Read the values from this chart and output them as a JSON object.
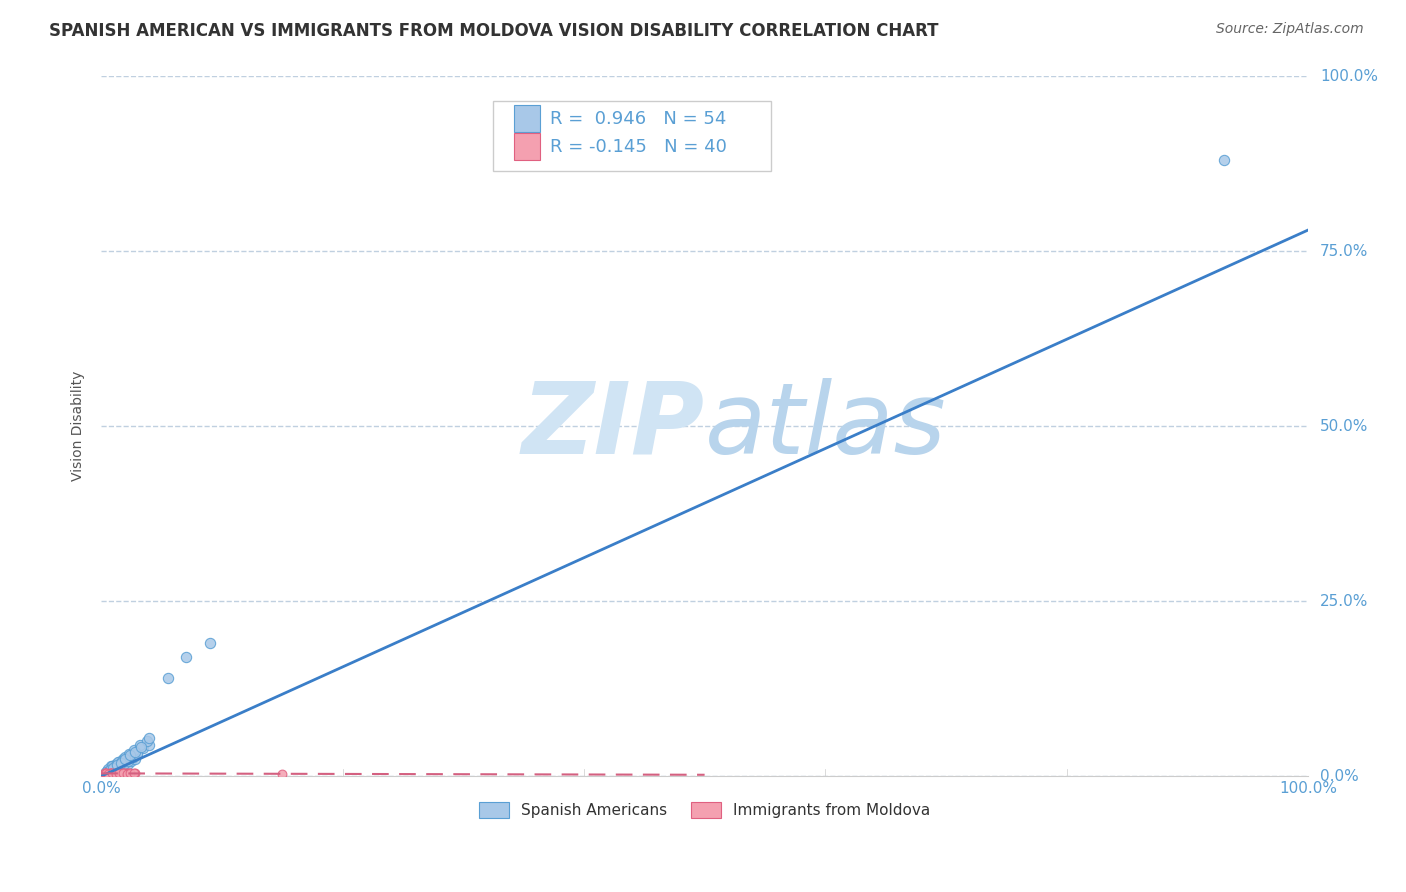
{
  "title": "SPANISH AMERICAN VS IMMIGRANTS FROM MOLDOVA VISION DISABILITY CORRELATION CHART",
  "source": "Source: ZipAtlas.com",
  "ylabel": "Vision Disability",
  "xlim": [
    0,
    1.0
  ],
  "ylim": [
    0,
    1.0
  ],
  "ytick_vals": [
    0.0,
    0.25,
    0.5,
    0.75,
    1.0
  ],
  "ytick_labels": [
    "0.0%",
    "25.0%",
    "50.0%",
    "75.0%",
    "100.0%"
  ],
  "legend_r1": "R =  0.946",
  "legend_n1": "N = 54",
  "legend_r2": "R = -0.145",
  "legend_n2": "N = 40",
  "blue_color": "#a8c8e8",
  "blue_edge_color": "#5a9fd4",
  "pink_color": "#f4a0b0",
  "pink_edge_color": "#e06080",
  "blue_line_color": "#3a7ec8",
  "pink_line_color": "#d46080",
  "background_color": "#ffffff",
  "grid_color": "#c0d0e0",
  "watermark_color": "#d0e4f4",
  "title_color": "#333333",
  "source_color": "#666666",
  "tick_color": "#5a9fd4",
  "title_fontsize": 12,
  "source_fontsize": 10,
  "axis_label_fontsize": 10,
  "tick_fontsize": 11,
  "legend_fontsize": 13,
  "blue_scatter_x": [
    0.005,
    0.008,
    0.01,
    0.012,
    0.015,
    0.018,
    0.02,
    0.022,
    0.025,
    0.028,
    0.008,
    0.01,
    0.012,
    0.015,
    0.018,
    0.02,
    0.025,
    0.03,
    0.035,
    0.04,
    0.005,
    0.007,
    0.009,
    0.011,
    0.013,
    0.016,
    0.019,
    0.022,
    0.026,
    0.03,
    0.006,
    0.009,
    0.012,
    0.014,
    0.017,
    0.02,
    0.023,
    0.027,
    0.032,
    0.038,
    0.004,
    0.007,
    0.01,
    0.013,
    0.016,
    0.02,
    0.024,
    0.028,
    0.033,
    0.04,
    0.055,
    0.07,
    0.09,
    0.93
  ],
  "blue_scatter_y": [
    0.005,
    0.01,
    0.008,
    0.012,
    0.01,
    0.015,
    0.02,
    0.018,
    0.022,
    0.025,
    0.015,
    0.012,
    0.018,
    0.02,
    0.025,
    0.022,
    0.03,
    0.035,
    0.04,
    0.045,
    0.008,
    0.006,
    0.012,
    0.01,
    0.015,
    0.013,
    0.018,
    0.022,
    0.028,
    0.032,
    0.01,
    0.014,
    0.016,
    0.02,
    0.022,
    0.028,
    0.032,
    0.038,
    0.045,
    0.05,
    0.006,
    0.009,
    0.011,
    0.016,
    0.019,
    0.025,
    0.03,
    0.035,
    0.042,
    0.055,
    0.14,
    0.17,
    0.19,
    0.88
  ],
  "pink_scatter_x": [
    0.002,
    0.004,
    0.006,
    0.008,
    0.01,
    0.012,
    0.015,
    0.018,
    0.02,
    0.022,
    0.003,
    0.005,
    0.007,
    0.009,
    0.011,
    0.014,
    0.016,
    0.019,
    0.021,
    0.024,
    0.003,
    0.005,
    0.007,
    0.01,
    0.013,
    0.016,
    0.019,
    0.022,
    0.025,
    0.028,
    0.004,
    0.006,
    0.009,
    0.012,
    0.015,
    0.018,
    0.021,
    0.024,
    0.027,
    0.15
  ],
  "pink_scatter_y": [
    0.003,
    0.004,
    0.003,
    0.005,
    0.003,
    0.004,
    0.003,
    0.005,
    0.004,
    0.003,
    0.005,
    0.003,
    0.004,
    0.003,
    0.005,
    0.003,
    0.004,
    0.003,
    0.005,
    0.004,
    0.004,
    0.003,
    0.005,
    0.003,
    0.004,
    0.003,
    0.005,
    0.004,
    0.003,
    0.004,
    0.005,
    0.003,
    0.004,
    0.003,
    0.005,
    0.004,
    0.003,
    0.005,
    0.004,
    0.003
  ],
  "blue_line_x": [
    0.0,
    1.0
  ],
  "blue_line_y": [
    0.0,
    0.78
  ],
  "pink_line_x": [
    0.0,
    0.5
  ],
  "pink_line_y": [
    0.004,
    0.002
  ],
  "marker_size": 55,
  "pink_marker_size": 40
}
